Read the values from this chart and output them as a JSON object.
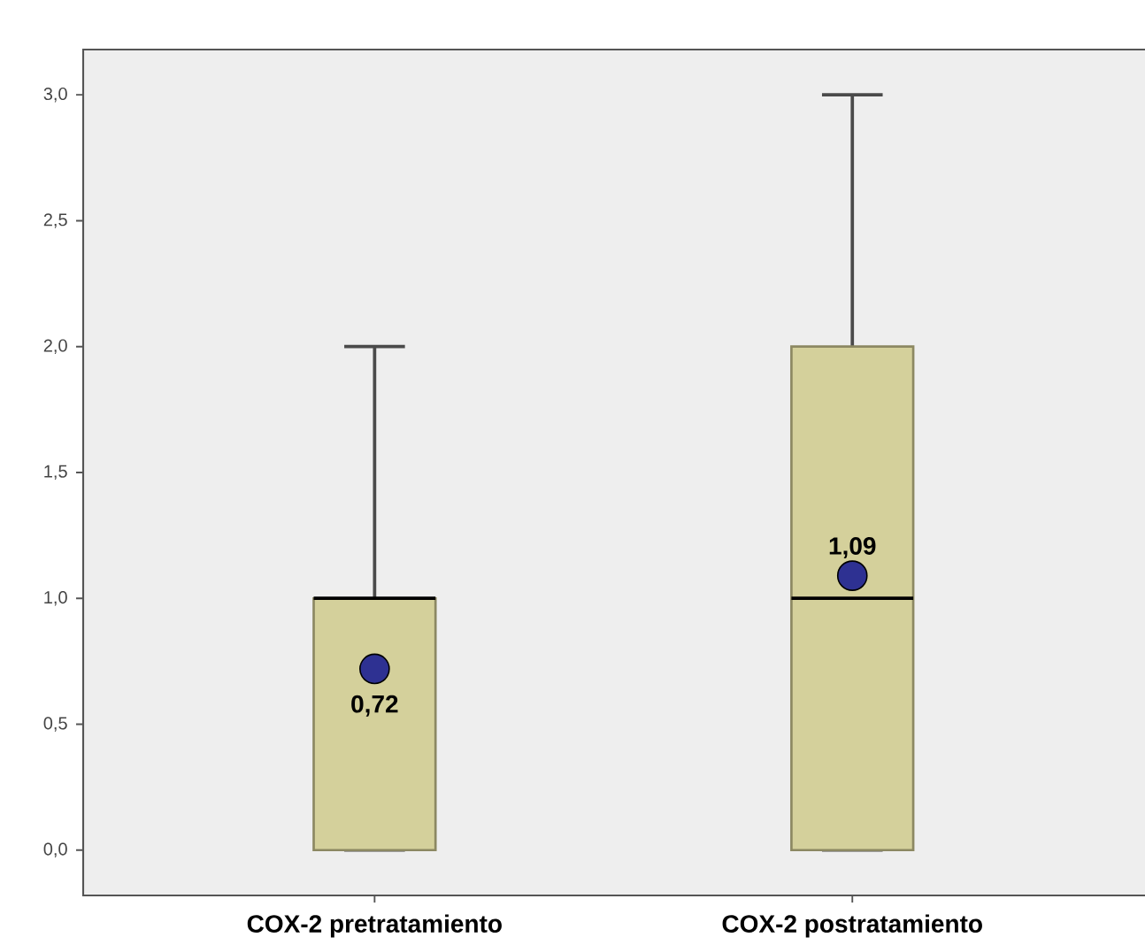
{
  "chart_data": {
    "type": "box",
    "categories": [
      "COX-2 pretratamiento",
      "COX-2 postratamiento"
    ],
    "series": [
      {
        "type": "box",
        "color": "#d4d09b",
        "boxes": [
          {
            "low": 0,
            "q1": 0,
            "median": 1,
            "q3": 1,
            "high": 2
          },
          {
            "low": 0,
            "q1": 0,
            "median": 1,
            "q3": 2,
            "high": 3
          }
        ]
      },
      {
        "type": "scatter",
        "color": "#2e3192",
        "marker": "circle",
        "x": [
          "COX-2 pretratamiento",
          "COX-2 postratamiento"
        ],
        "values": [
          0.72,
          1.09
        ],
        "value_labels": [
          "0,72",
          "1,09"
        ]
      }
    ],
    "ylim": [
      -0.18,
      3.18
    ],
    "yticks": [
      {
        "value": 0,
        "label": "0,0"
      },
      {
        "value": 0.5,
        "label": "0,5"
      },
      {
        "value": 1,
        "label": "1,0"
      },
      {
        "value": 1.5,
        "label": "1,5"
      },
      {
        "value": 2,
        "label": "2,0"
      },
      {
        "value": 2.5,
        "label": "2,5"
      },
      {
        "value": 3,
        "label": "3,0"
      }
    ]
  }
}
